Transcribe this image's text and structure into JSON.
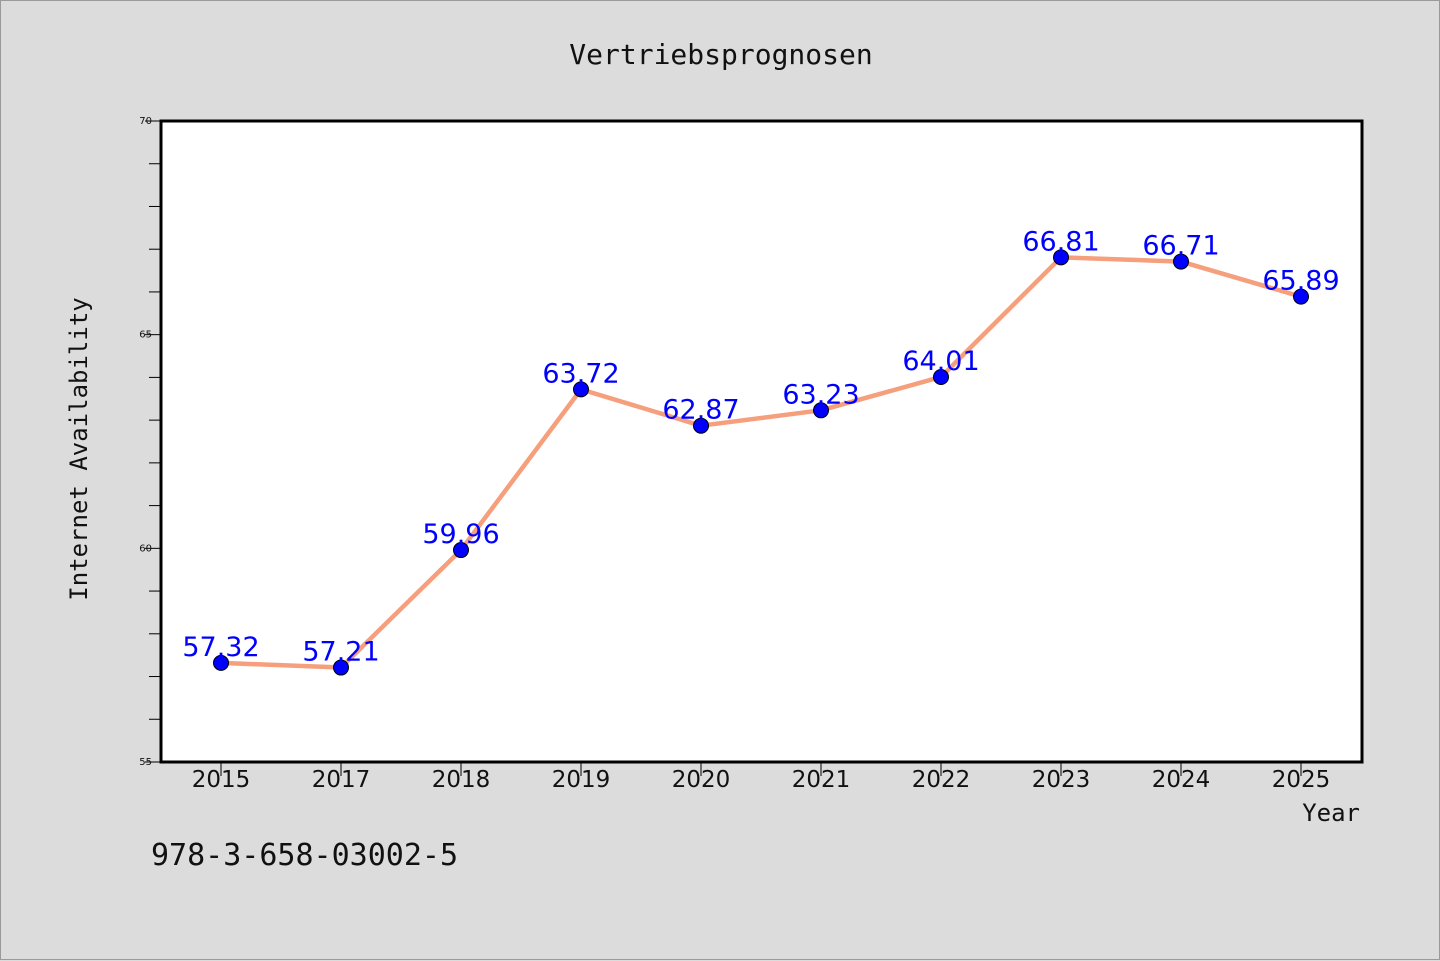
{
  "chart_data": {
    "type": "line",
    "title": "Vertriebsprognosen",
    "xlabel": "Year",
    "ylabel": "Internet Availability",
    "categories": [
      "2015",
      "2017",
      "2018",
      "2019",
      "2020",
      "2021",
      "2022",
      "2023",
      "2024",
      "2025"
    ],
    "series": [
      {
        "values": [
          57.32,
          57.21,
          59.96,
          63.72,
          62.87,
          63.23,
          64.01,
          66.81,
          66.71,
          65.89
        ]
      }
    ],
    "data_labels": [
      "57.32",
      "57.21",
      "59.96",
      "63.72",
      "62.87",
      "63.23",
      "64.01",
      "66.81",
      "66.71",
      "65.89"
    ],
    "ylim": [
      55,
      70
    ],
    "yticks": [
      "55",
      "60",
      "65",
      "70"
    ],
    "grid": false,
    "line_color": "#f59f7d",
    "marker_color": "#0000ff",
    "label_color": "#0000ff"
  },
  "footnote": "978-3-658-03002-5"
}
